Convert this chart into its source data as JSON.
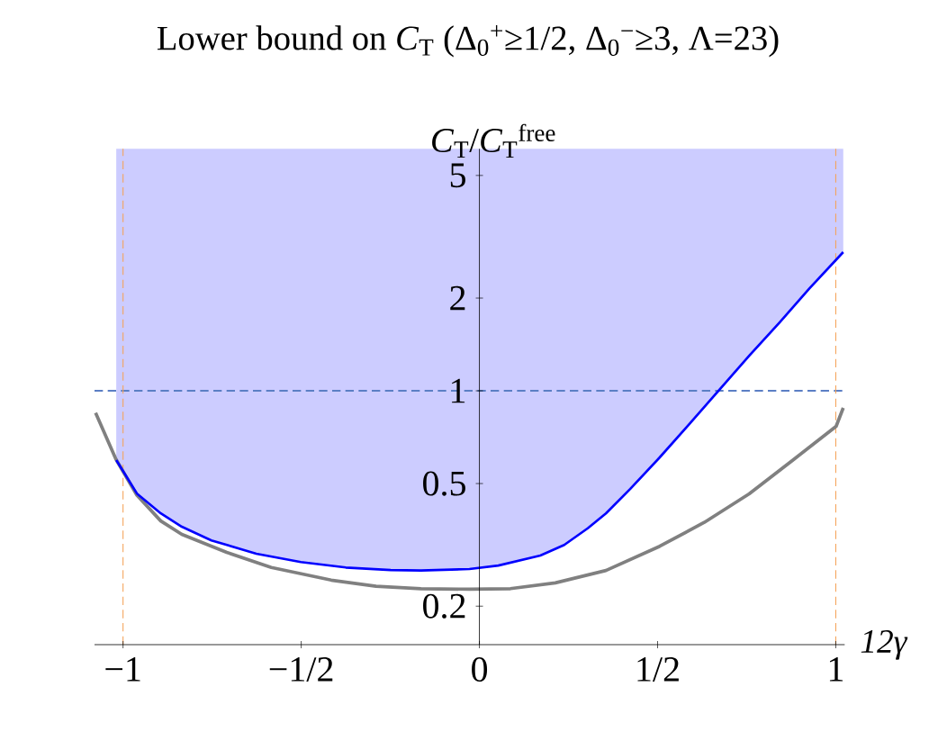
{
  "chart_data": {
    "type": "line",
    "title": "Lower bound on *C*$_{T}$ (Δ$_{0}$$^{+}$≥1/2, Δ$_{0}$$^{−}$≥3, Λ=23)",
    "ylabel": "*C*$_{T}$/*C*$_{T}$$^{free}$",
    "xlabel": "12γ",
    "log": "y",
    "xlim": [
      -1.08,
      1.025
    ],
    "ylim": [
      0.15,
      6.1
    ],
    "xticks": [
      {
        "value": -1,
        "label": "−1"
      },
      {
        "value": -0.5,
        "label": "−1/2"
      },
      0,
      {
        "value": 0.5,
        "label": "1/2"
      },
      1
    ],
    "yticks": [
      0.2,
      0.5,
      1,
      2,
      5
    ],
    "series": [
      {
        "color": "#0000ff",
        "x": [
          -1.019,
          -0.961,
          -0.894,
          -0.835,
          -0.752,
          -0.626,
          -0.501,
          -0.375,
          -0.249,
          -0.164,
          -0.028,
          0.053,
          0.171,
          0.238,
          0.304,
          0.355,
          0.423,
          0.506,
          0.591,
          0.674,
          0.757,
          0.843,
          0.926,
          1.021
        ],
        "values": [
          0.596,
          0.464,
          0.4,
          0.362,
          0.327,
          0.296,
          0.278,
          0.267,
          0.262,
          0.261,
          0.264,
          0.271,
          0.292,
          0.316,
          0.358,
          0.4,
          0.48,
          0.608,
          0.785,
          1.01,
          1.3,
          1.67,
          2.15,
          2.82
        ],
        "lower": [
          0.596,
          0.464,
          0.4,
          0.362,
          0.327,
          0.296,
          0.278,
          0.267,
          0.262,
          0.261,
          0.264,
          0.271,
          0.292,
          0.316,
          0.358,
          0.4,
          0.48,
          0.608,
          0.785,
          1.01,
          1.3,
          1.67,
          2.15,
          2.82
        ],
        "upper": [
          6.1,
          6.1,
          6.1,
          6.1,
          6.1,
          6.1,
          6.1,
          6.1,
          6.1,
          6.1,
          6.1,
          6.1,
          6.1,
          6.1,
          6.1,
          6.1,
          6.1,
          6.1,
          6.1,
          6.1,
          6.1,
          6.1,
          6.1,
          6.1
        ]
      },
      {
        "color": "#808080",
        "x": [
          -1.077,
          -1.02,
          -0.961,
          -0.894,
          -0.835,
          -0.709,
          -0.584,
          -0.416,
          -0.29,
          -0.164,
          -0.028,
          0.087,
          0.213,
          0.355,
          0.506,
          0.631,
          0.757,
          0.883,
          1.001,
          1.021
        ],
        "values": [
          0.849,
          0.6,
          0.458,
          0.378,
          0.342,
          0.299,
          0.267,
          0.243,
          0.232,
          0.228,
          0.227,
          0.228,
          0.238,
          0.261,
          0.313,
          0.374,
          0.463,
          0.6,
          0.767,
          0.88
        ]
      }
    ],
    "ref_lines": [
      {
        "axis": "y",
        "value": 1,
        "color": "#5b7fc4",
        "line_style": "dashed"
      },
      {
        "axis": "x",
        "value": -1,
        "color": "#f5a35a",
        "line_style": "dashed"
      },
      {
        "axis": "x",
        "value": 1,
        "color": "#f5a35a",
        "line_style": "dashed"
      }
    ]
  }
}
